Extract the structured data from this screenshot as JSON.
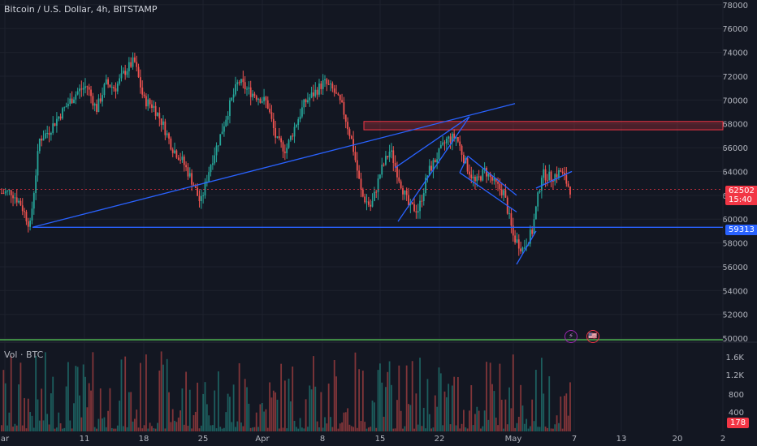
{
  "header": {
    "title": "Bitcoin / U.S. Dollar, 4h, BITSTAMP"
  },
  "volume_pane": {
    "title": "Vol · BTC",
    "ticks": [
      "1.6K",
      "1.2K",
      "800",
      "400"
    ],
    "last_value": "178"
  },
  "price_tag": {
    "price": "62502",
    "countdown": "15:40"
  },
  "level_tag": {
    "price": "59313"
  },
  "markers": {
    "m1": "⚡",
    "m2": "🇺🇸"
  },
  "colors": {
    "bg": "#131722",
    "up": "#26a69a",
    "down": "#ef5350",
    "trend": "#2962ff",
    "zone": "#f23645",
    "grid": "#1e222d",
    "axis_text": "#b2b5be"
  },
  "chart_data": {
    "type": "candlestick",
    "symbol": "BTCUSD",
    "interval": "4h",
    "exchange": "BITSTAMP",
    "y_ticks": [
      50000,
      52000,
      54000,
      56000,
      58000,
      60000,
      62000,
      64000,
      66000,
      68000,
      70000,
      72000,
      74000,
      76000,
      78000
    ],
    "ylim": [
      49800,
      78400
    ],
    "x_ticks": [
      "ar",
      "11",
      "18",
      "25",
      "Apr",
      "8",
      "15",
      "22",
      "May",
      "7",
      "13",
      "20",
      "2"
    ],
    "price_path": [
      [
        0,
        62200
      ],
      [
        1,
        62300
      ],
      [
        2,
        61300
      ],
      [
        3,
        59400
      ],
      [
        4,
        66700
      ],
      [
        5,
        67400
      ],
      [
        6,
        68600
      ],
      [
        7,
        69700
      ],
      [
        8,
        70700
      ],
      [
        9,
        71200
      ],
      [
        10,
        69200
      ],
      [
        11,
        71400
      ],
      [
        12,
        71000
      ],
      [
        13,
        72400
      ],
      [
        14,
        73300
      ],
      [
        15,
        70000
      ],
      [
        16,
        69500
      ],
      [
        17,
        68000
      ],
      [
        18,
        66000
      ],
      [
        19,
        65000
      ],
      [
        20,
        63400
      ],
      [
        21,
        61300
      ],
      [
        22,
        64500
      ],
      [
        23,
        66800
      ],
      [
        24,
        69400
      ],
      [
        25,
        71600
      ],
      [
        26,
        70800
      ],
      [
        27,
        70300
      ],
      [
        28,
        69800
      ],
      [
        29,
        66600
      ],
      [
        30,
        65800
      ],
      [
        31,
        67900
      ],
      [
        32,
        69800
      ],
      [
        33,
        70600
      ],
      [
        34,
        71500
      ],
      [
        35,
        70800
      ],
      [
        36,
        69300
      ],
      [
        37,
        66400
      ],
      [
        38,
        62000
      ],
      [
        39,
        61000
      ],
      [
        40,
        64000
      ],
      [
        41,
        65800
      ],
      [
        42,
        63300
      ],
      [
        43,
        61000
      ],
      [
        44,
        60800
      ],
      [
        45,
        63900
      ],
      [
        46,
        65300
      ],
      [
        47,
        66700
      ],
      [
        48,
        66900
      ],
      [
        49,
        64600
      ],
      [
        50,
        63000
      ],
      [
        51,
        64100
      ],
      [
        52,
        63000
      ],
      [
        53,
        62200
      ],
      [
        54,
        58500
      ],
      [
        55,
        57500
      ],
      [
        56,
        59000
      ],
      [
        57,
        63800
      ],
      [
        58,
        63500
      ],
      [
        59,
        64000
      ],
      [
        60,
        62500
      ]
    ],
    "current_price": 62502,
    "horizontal_level": 59313,
    "resistance_zone": [
      67500,
      68200
    ],
    "trend_lines": [
      {
        "name": "rising-trendline",
        "from": [
          59313,
          "Mar 3"
        ],
        "to": [
          69700,
          "Apr 27"
        ]
      },
      {
        "name": "support-line",
        "value": 59313
      }
    ],
    "volume": {
      "ylim": [
        0,
        1900
      ],
      "last": 178,
      "max_label": "1.6K"
    },
    "grid": true
  }
}
